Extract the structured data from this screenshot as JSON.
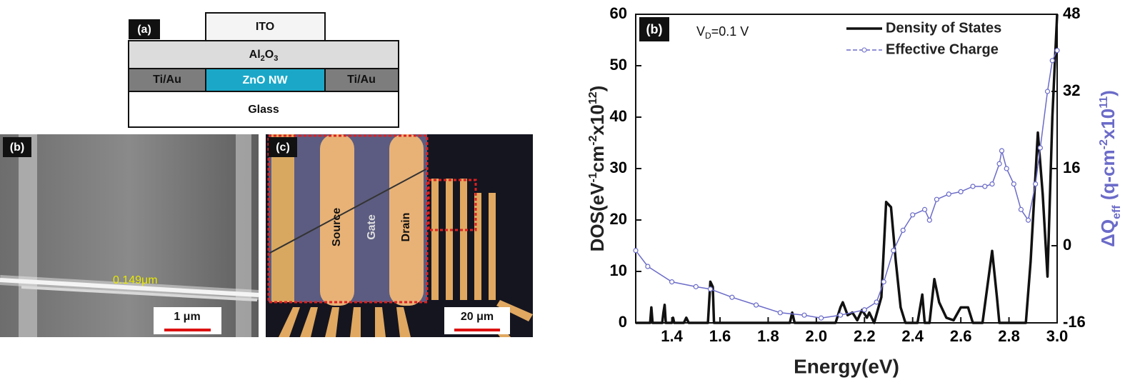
{
  "diagram": {
    "panel_label": "(a)",
    "top": "ITO",
    "middle": [
      "Al",
      "2",
      "O",
      "3"
    ],
    "left": "Ti/Au",
    "channel": "ZnO NW",
    "right": "Ti/Au",
    "substrate": "Glass"
  },
  "sem": {
    "panel_label": "(b)",
    "measurement": "0.149μm",
    "scale_bar": "1 μm"
  },
  "optical": {
    "panel_label": "(c)",
    "electrodes": [
      "Source",
      "Gate",
      "Drain"
    ],
    "scale_bar": "20 μm"
  },
  "chart_data": {
    "type": "line",
    "panel_label": "(b)",
    "annotation": [
      "V",
      "D",
      "=0.1 V"
    ],
    "xlabel": "Energy(eV)",
    "ylabel": [
      "DOS(eV",
      "-1",
      "cm",
      "-2",
      "x10",
      "12",
      ")"
    ],
    "y2label": [
      "ΔQ",
      "eff",
      " (q-cm",
      "-2",
      "x10",
      "11",
      ")"
    ],
    "xlim": [
      1.25,
      3.0
    ],
    "xticks": [
      1.4,
      1.6,
      1.8,
      {
        "value": 2,
        "label": "2.0"
      },
      2.2,
      2.4,
      2.6,
      2.8,
      {
        "value": 3,
        "label": "3.0"
      }
    ],
    "ylim": [
      0,
      60
    ],
    "yticks": [
      0,
      10,
      20,
      30,
      40,
      50,
      60
    ],
    "y2lim": [
      -16,
      48
    ],
    "y2ticks": [
      -16,
      0,
      16,
      32,
      48
    ],
    "legend": "upper right",
    "series": [
      {
        "name": "Density of States",
        "color": "#111111",
        "x": [
          1.25,
          1.31,
          1.315,
          1.32,
          1.36,
          1.365,
          1.37,
          1.375,
          1.4,
          1.405,
          1.41,
          1.45,
          1.46,
          1.47,
          1.55,
          1.56,
          1.57,
          1.575,
          1.89,
          1.9,
          1.91,
          2.08,
          2.1,
          2.11,
          2.13,
          2.15,
          2.17,
          2.19,
          2.21,
          2.22,
          2.24,
          2.27,
          2.29,
          2.31,
          2.33,
          2.35,
          2.37,
          2.42,
          2.44,
          2.45,
          2.47,
          2.49,
          2.51,
          2.54,
          2.57,
          2.6,
          2.63,
          2.65,
          2.69,
          2.73,
          2.75,
          2.76,
          2.87,
          2.89,
          2.92,
          2.94,
          2.96,
          2.98,
          2.99,
          3.0
        ],
        "values": [
          0,
          0,
          3,
          0,
          0,
          2,
          3.5,
          0,
          0,
          1,
          0,
          0,
          1,
          0,
          0,
          8,
          7,
          0,
          0,
          2,
          0,
          0,
          3,
          4,
          1.5,
          2,
          0.5,
          2.5,
          1,
          2,
          0,
          5,
          23.5,
          22.5,
          12,
          3,
          0,
          0,
          5.5,
          0,
          0,
          8.5,
          4,
          1,
          0.5,
          3,
          3,
          0,
          0,
          14,
          5,
          0,
          0,
          12,
          37,
          25,
          9,
          40,
          50,
          60
        ]
      },
      {
        "name": "Effective Charge",
        "color": "#6b6bc9",
        "axis": "y2",
        "x": [
          1.25,
          1.3,
          1.4,
          1.5,
          1.56,
          1.65,
          1.75,
          1.85,
          1.95,
          2.02,
          2.1,
          2.2,
          2.25,
          2.28,
          2.32,
          2.36,
          2.4,
          2.45,
          2.47,
          2.5,
          2.55,
          2.6,
          2.65,
          2.7,
          2.73,
          2.76,
          2.77,
          2.79,
          2.82,
          2.85,
          2.88,
          2.91,
          2.93,
          2.96,
          2.98,
          3.0
        ],
        "values": [
          -1,
          -4.3,
          -7.5,
          -8.5,
          -9,
          -10.7,
          -12.3,
          -13.9,
          -14.4,
          -15,
          -14.4,
          -13.3,
          -11.7,
          -7.5,
          -1,
          3.2,
          6.4,
          7.5,
          5.3,
          9.6,
          10.7,
          11.2,
          12.3,
          12.3,
          12.8,
          17,
          19.7,
          16,
          12.8,
          7.5,
          5.3,
          12.8,
          20.3,
          32,
          38.4,
          40.5
        ]
      }
    ]
  }
}
